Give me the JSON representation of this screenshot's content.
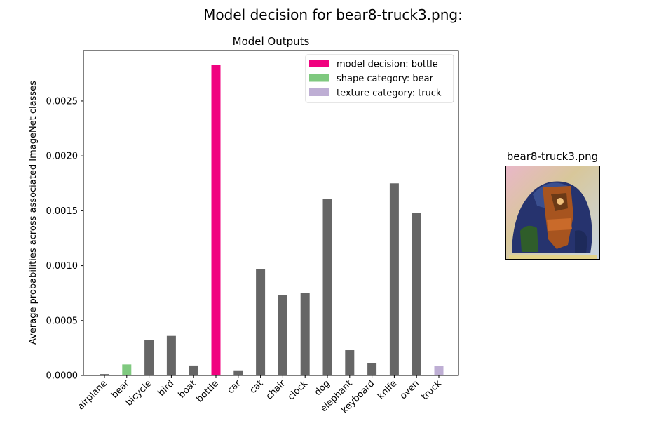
{
  "figure": {
    "suptitle": "Model decision for bear8-truck3.png:"
  },
  "image_panel": {
    "title": "bear8-truck3.png"
  },
  "colors": {
    "decision": "#f0027f",
    "shape": "#7fc97f",
    "texture": "#beaed4",
    "other": "#666666"
  },
  "chart_data": {
    "type": "bar",
    "title": "Model Outputs",
    "xlabel": "",
    "ylabel": "Average probabilities across associated ImageNet classes",
    "categories": [
      "airplane",
      "bear",
      "bicycle",
      "bird",
      "boat",
      "bottle",
      "car",
      "cat",
      "chair",
      "clock",
      "dog",
      "elephant",
      "keyboard",
      "knife",
      "oven",
      "truck"
    ],
    "values": [
      1.2e-05,
      0.0001,
      0.00032,
      0.00036,
      9e-05,
      0.00283,
      4e-05,
      0.00097,
      0.00073,
      0.00075,
      0.00161,
      0.00023,
      0.00011,
      0.00175,
      0.00148,
      8.5e-05
    ],
    "bar_roles": [
      "other",
      "shape",
      "other",
      "other",
      "other",
      "decision",
      "other",
      "other",
      "other",
      "other",
      "other",
      "other",
      "other",
      "other",
      "other",
      "texture"
    ],
    "ylim": [
      0,
      0.00296
    ],
    "yticks": [
      0.0,
      0.0005,
      0.001,
      0.0015,
      0.002,
      0.0025
    ],
    "ytick_labels": [
      "0.0000",
      "0.0005",
      "0.0010",
      "0.0015",
      "0.0020",
      "0.0025"
    ],
    "grid": false,
    "legend": {
      "placement": "top-right",
      "entries": [
        {
          "label": "model decision: bottle",
          "role": "decision"
        },
        {
          "label": "shape category: bear",
          "role": "shape"
        },
        {
          "label": "texture category: truck",
          "role": "texture"
        }
      ]
    }
  }
}
